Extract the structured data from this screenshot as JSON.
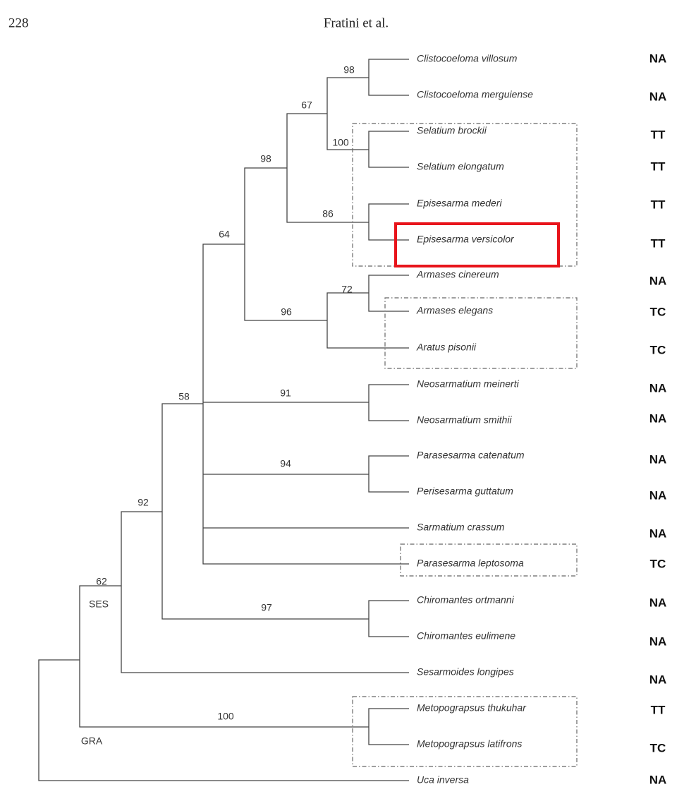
{
  "header": {
    "page_number": "228",
    "running_head": "Fratini et al."
  },
  "taxa": [
    {
      "name": "Clistocoeloma villosum",
      "code": "NA"
    },
    {
      "name": "Clistocoeloma merguiense",
      "code": "NA"
    },
    {
      "name": "Selatium brockii",
      "code": "TT"
    },
    {
      "name": "Selatium elongatum",
      "code": "TT"
    },
    {
      "name": "Episesarma mederi",
      "code": "TT"
    },
    {
      "name": "Episesarma versicolor",
      "code": "TT"
    },
    {
      "name": "Armases cinereum",
      "code": "NA"
    },
    {
      "name": "Armases elegans",
      "code": "TC"
    },
    {
      "name": "Aratus pisonii",
      "code": "TC"
    },
    {
      "name": "Neosarmatium meinerti",
      "code": "NA"
    },
    {
      "name": "Neosarmatium smithii",
      "code": "NA"
    },
    {
      "name": "Parasesarma catenatum",
      "code": "NA"
    },
    {
      "name": "Perisesarma guttatum",
      "code": "NA"
    },
    {
      "name": "Sarmatium crassum",
      "code": "NA"
    },
    {
      "name": "Parasesarma leptosoma",
      "code": "TC"
    },
    {
      "name": "Chiromantes ortmanni",
      "code": "NA"
    },
    {
      "name": "Chiromantes eulimene",
      "code": "NA"
    },
    {
      "name": "Sesarmoides longipes",
      "code": "NA"
    },
    {
      "name": "Metopograpsus thukuhar",
      "code": "TT"
    },
    {
      "name": "Metopograpsus latifrons",
      "code": "TC"
    },
    {
      "name": "Uca inversa",
      "code": "NA"
    }
  ],
  "bootstrap_values": [
    "98",
    "100",
    "67",
    "86",
    "98",
    "72",
    "96",
    "64",
    "91",
    "94",
    "58",
    "97",
    "92",
    "62",
    "100"
  ],
  "clade_labels": [
    "SES",
    "GRA"
  ]
}
